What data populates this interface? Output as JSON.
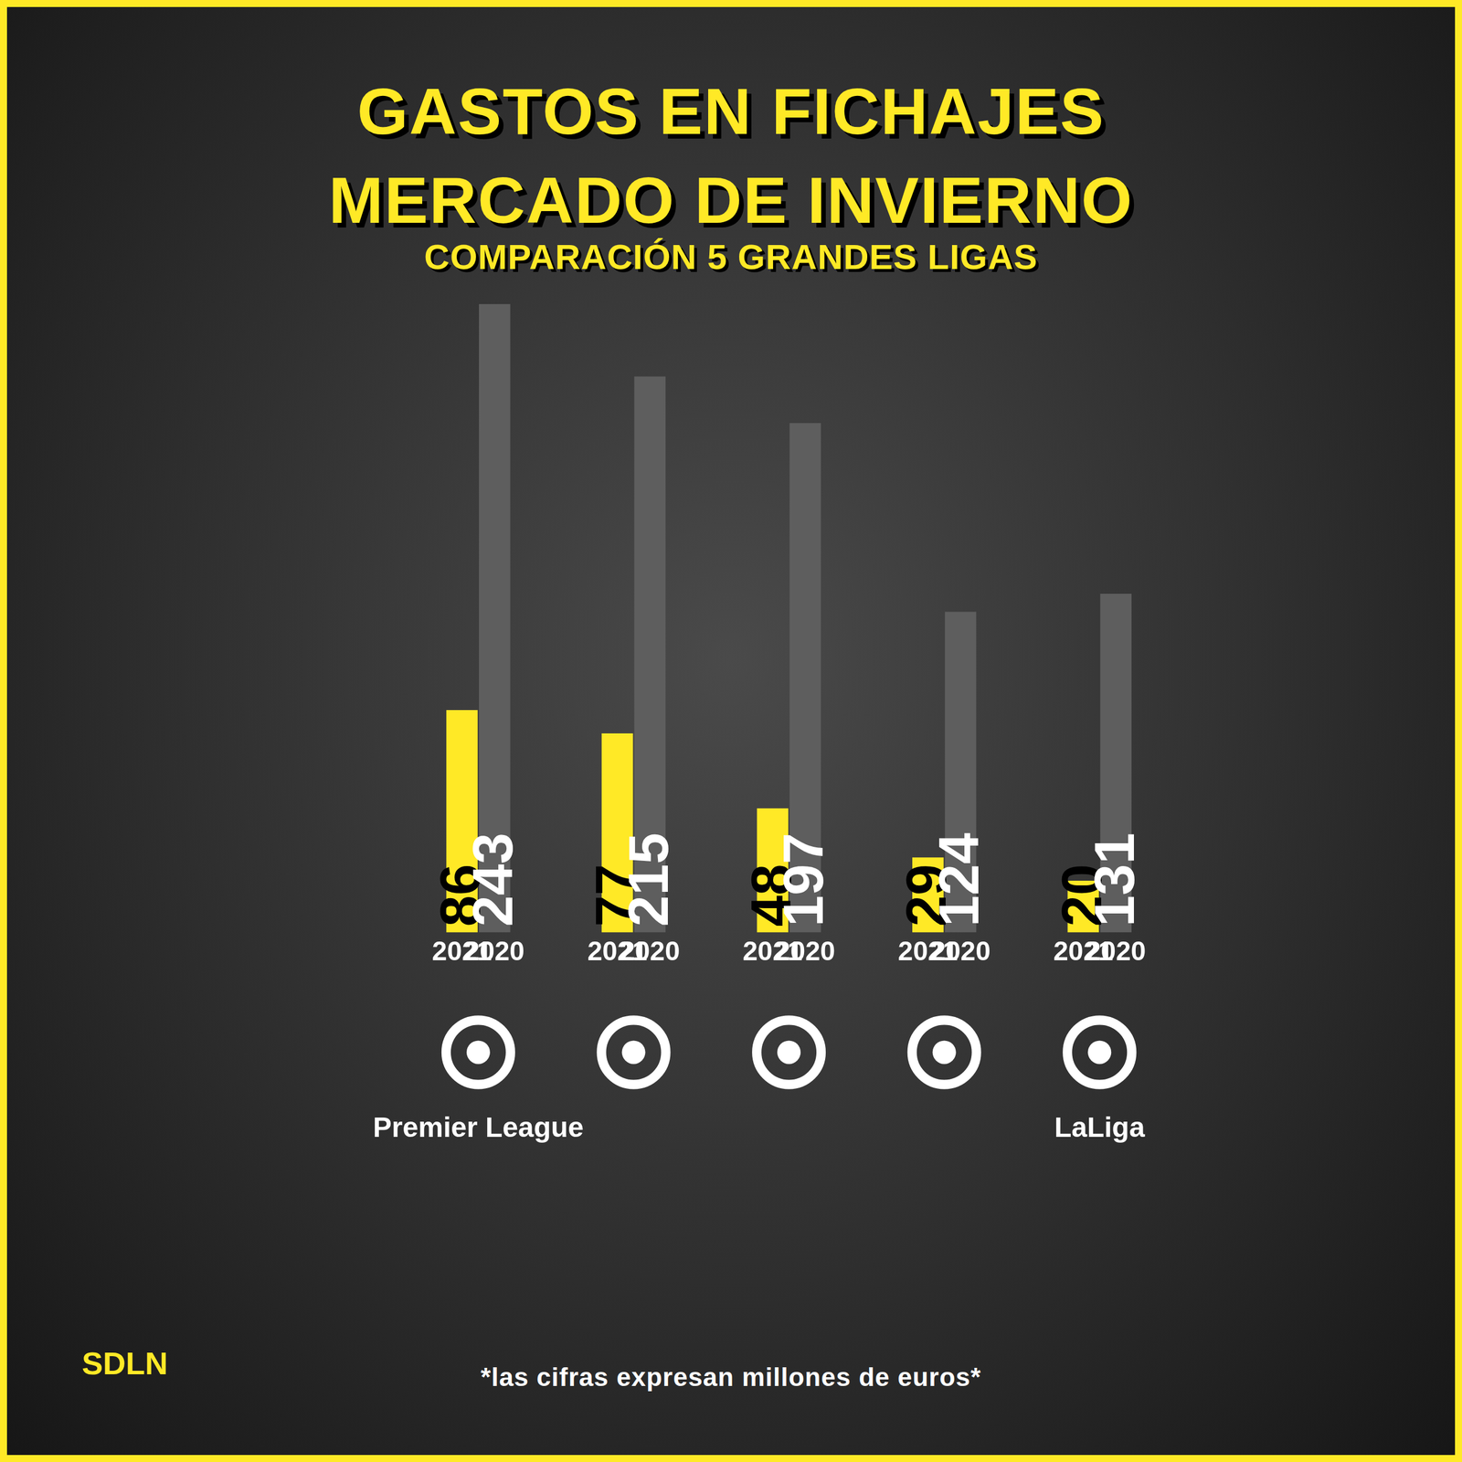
{
  "chart_data": {
    "type": "bar",
    "title": "GASTOS EN FICHAJES\nMERCADO DE INVIERNO",
    "subtitle": "COMPARACIÓN 5 GRANDES LIGAS",
    "annotations": [
      "SDLN",
      "*las cifras expresan millones de euros*"
    ],
    "categories": [
      "Premier League",
      null,
      null,
      null,
      "LaLiga"
    ],
    "series": [
      {
        "name": "2021",
        "color": "#ffe926",
        "values": [
          86,
          77,
          48,
          29,
          20
        ]
      },
      {
        "name": "2020",
        "color": "#5e5e5e",
        "values": [
          243,
          215,
          197,
          124,
          131
        ]
      }
    ],
    "ylim": [
      0,
      243
    ],
    "grid": false,
    "tick_labels": false,
    "data_labels": true
  }
}
